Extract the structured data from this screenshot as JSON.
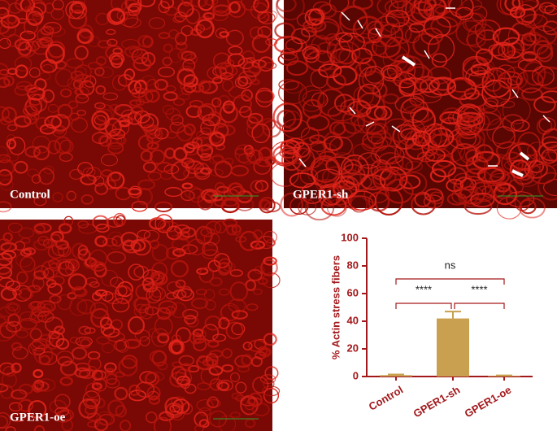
{
  "panels": [
    {
      "label": "Control"
    },
    {
      "label": "GPER1-sh"
    },
    {
      "label": "GPER1-oe"
    }
  ],
  "chart_data": {
    "type": "bar",
    "ylabel": "% Actin stress fibers",
    "categories": [
      "Control",
      "GPER1-sh",
      "GPER1-oe"
    ],
    "values": [
      1,
      42,
      0.5
    ],
    "errors": [
      0.5,
      5,
      0.3
    ],
    "color": "#c9a050",
    "ylim": [
      0,
      100
    ],
    "yticks": [
      0,
      20,
      40,
      60,
      80,
      100
    ],
    "annotations": [
      "****",
      "****",
      "ns"
    ]
  }
}
